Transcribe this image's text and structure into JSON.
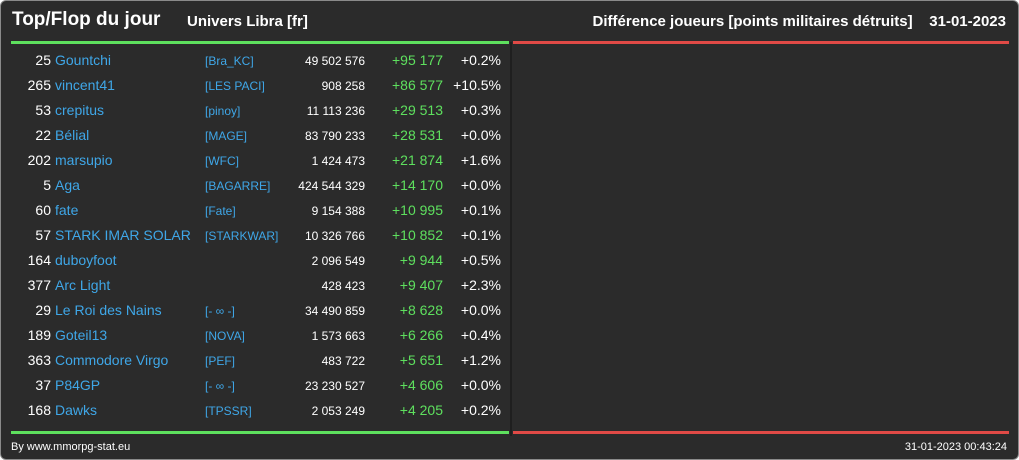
{
  "header": {
    "title": "Top/Flop du jour",
    "universe": "Univers Libra [fr]",
    "heading": "Différence joueurs [points militaires détruits]",
    "date": "31-01-2023"
  },
  "colors": {
    "background": "#2b2b2b",
    "player_link": "#3fa7e8",
    "gain": "#5ee05e",
    "loss_bar": "#e04a46"
  },
  "rows": [
    {
      "rank": "25",
      "player": "Gountchi",
      "alliance": "[Bra_KC]",
      "points": "49 502 576",
      "diff": "+95 177",
      "pct": "+0.2%"
    },
    {
      "rank": "265",
      "player": "vincent41",
      "alliance": "[LES PACI]",
      "points": "908 258",
      "diff": "+86 577",
      "pct": "+10.5%"
    },
    {
      "rank": "53",
      "player": "crepitus",
      "alliance": "[pinoy]",
      "points": "11 113 236",
      "diff": "+29 513",
      "pct": "+0.3%"
    },
    {
      "rank": "22",
      "player": "Bélial",
      "alliance": "[MAGE]",
      "points": "83 790 233",
      "diff": "+28 531",
      "pct": "+0.0%"
    },
    {
      "rank": "202",
      "player": "marsupio",
      "alliance": "[WFC]",
      "points": "1 424 473",
      "diff": "+21 874",
      "pct": "+1.6%"
    },
    {
      "rank": "5",
      "player": "Aga",
      "alliance": "[BAGARRE]",
      "points": "424 544 329",
      "diff": "+14 170",
      "pct": "+0.0%"
    },
    {
      "rank": "60",
      "player": "fate",
      "alliance": "[Fate]",
      "points": "9 154 388",
      "diff": "+10 995",
      "pct": "+0.1%"
    },
    {
      "rank": "57",
      "player": "STARK IMAR SOLAR",
      "alliance": "[STARKWAR]",
      "points": "10 326 766",
      "diff": "+10 852",
      "pct": "+0.1%"
    },
    {
      "rank": "164",
      "player": "duboyfoot",
      "alliance": "",
      "points": "2 096 549",
      "diff": "+9 944",
      "pct": "+0.5%"
    },
    {
      "rank": "377",
      "player": "Arc Light",
      "alliance": "",
      "points": "428 423",
      "diff": "+9 407",
      "pct": "+2.3%"
    },
    {
      "rank": "29",
      "player": "Le Roi des Nains",
      "alliance": "[- ∞ -]",
      "points": "34 490 859",
      "diff": "+8 628",
      "pct": "+0.0%"
    },
    {
      "rank": "189",
      "player": "Goteil13",
      "alliance": "[NOVA]",
      "points": "1 573 663",
      "diff": "+6 266",
      "pct": "+0.4%"
    },
    {
      "rank": "363",
      "player": "Commodore Virgo",
      "alliance": "[PEF]",
      "points": "483 722",
      "diff": "+5 651",
      "pct": "+1.2%"
    },
    {
      "rank": "37",
      "player": "P84GP",
      "alliance": "[- ∞ -]",
      "points": "23 230 527",
      "diff": "+4 606",
      "pct": "+0.0%"
    },
    {
      "rank": "168",
      "player": "Dawks",
      "alliance": "[TPSSR]",
      "points": "2 053 249",
      "diff": "+4 205",
      "pct": "+0.2%"
    }
  ],
  "footer": {
    "credit": "By www.mmorpg-stat.eu",
    "timestamp": "31-01-2023 00:43:24"
  }
}
